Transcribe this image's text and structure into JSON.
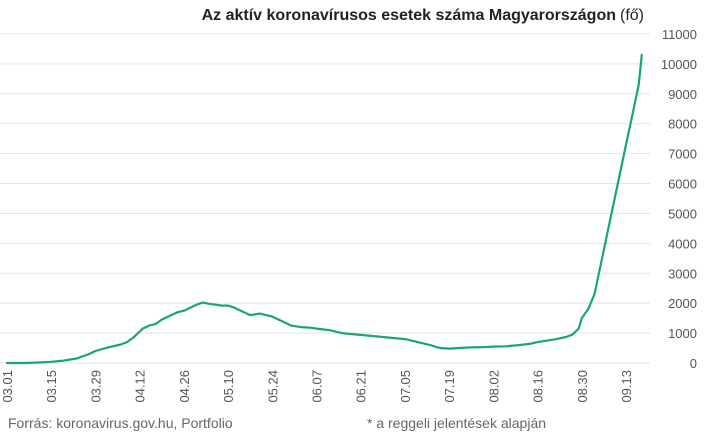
{
  "title": "Az aktív koronavírusos esetek száma Magyarországon",
  "unit": "(fő)",
  "footer": {
    "source": "Forrás: koronavirus.gov.hu, Portfolio",
    "note": "* a reggeli jelentések alapján"
  },
  "colors": {
    "line": "#1aa37f",
    "grid": "#e3e3e3",
    "text": "#555555"
  },
  "chart_data": {
    "type": "line",
    "title": "Az aktív koronavírusos esetek száma Magyarországon (fő)",
    "xlabel": "",
    "ylabel": "",
    "ylim": [
      0,
      11000
    ],
    "yticks": [
      0,
      1000,
      2000,
      3000,
      4000,
      5000,
      6000,
      7000,
      8000,
      9000,
      10000,
      11000
    ],
    "y_axis_position": "right",
    "grid": true,
    "xlim": [
      "2020-03-01",
      "2020-09-19"
    ],
    "xticks": [
      "03.01",
      "03.15",
      "03.29",
      "04.12",
      "04.26",
      "05.10",
      "05.24",
      "06.07",
      "06.21",
      "07.05",
      "07.19",
      "08.02",
      "08.16",
      "08.30",
      "09.13"
    ],
    "xtick_dates": [
      "2020-03-01",
      "2020-03-15",
      "2020-03-29",
      "2020-04-12",
      "2020-04-26",
      "2020-05-10",
      "2020-05-24",
      "2020-06-07",
      "2020-06-21",
      "2020-07-05",
      "2020-07-19",
      "2020-08-02",
      "2020-08-16",
      "2020-08-30",
      "2020-09-13"
    ],
    "series": [
      {
        "x": [
          "2020-03-01",
          "2020-03-07",
          "2020-03-12",
          "2020-03-15",
          "2020-03-19",
          "2020-03-23",
          "2020-03-27",
          "2020-03-29",
          "2020-04-02",
          "2020-04-06",
          "2020-04-08",
          "2020-04-10",
          "2020-04-12",
          "2020-04-13",
          "2020-04-15",
          "2020-04-17",
          "2020-04-19",
          "2020-04-22",
          "2020-04-24",
          "2020-04-26",
          "2020-04-28",
          "2020-04-30",
          "2020-05-02",
          "2020-05-04",
          "2020-05-06",
          "2020-05-08",
          "2020-05-10",
          "2020-05-12",
          "2020-05-14",
          "2020-05-17",
          "2020-05-20",
          "2020-05-24",
          "2020-05-27",
          "2020-05-30",
          "2020-06-02",
          "2020-06-05",
          "2020-06-07",
          "2020-06-11",
          "2020-06-15",
          "2020-06-20",
          "2020-06-21",
          "2020-06-25",
          "2020-06-30",
          "2020-07-05",
          "2020-07-09",
          "2020-07-13",
          "2020-07-16",
          "2020-07-19",
          "2020-07-22",
          "2020-07-26",
          "2020-07-30",
          "2020-08-02",
          "2020-08-06",
          "2020-08-10",
          "2020-08-14",
          "2020-08-16",
          "2020-08-19",
          "2020-08-22",
          "2020-08-25",
          "2020-08-27",
          "2020-08-29",
          "2020-08-30",
          "2020-09-01",
          "2020-09-03",
          "2020-09-05",
          "2020-09-07",
          "2020-09-09",
          "2020-09-11",
          "2020-09-13",
          "2020-09-15",
          "2020-09-17",
          "2020-09-18"
        ],
        "values": [
          0,
          0,
          20,
          40,
          80,
          150,
          300,
          400,
          520,
          620,
          700,
          850,
          1050,
          1150,
          1250,
          1300,
          1450,
          1600,
          1700,
          1750,
          1850,
          1950,
          2020,
          1980,
          1950,
          1920,
          1920,
          1850,
          1750,
          1600,
          1650,
          1550,
          1400,
          1250,
          1200,
          1180,
          1150,
          1100,
          1000,
          950,
          940,
          900,
          850,
          800,
          700,
          600,
          500,
          480,
          500,
          520,
          530,
          550,
          560,
          600,
          650,
          700,
          750,
          800,
          870,
          950,
          1150,
          1500,
          1800,
          2300,
          3300,
          4300,
          5300,
          6300,
          7300,
          8300,
          9300,
          10300
        ]
      }
    ]
  }
}
